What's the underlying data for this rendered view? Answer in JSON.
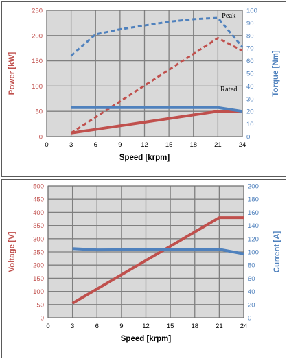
{
  "colors": {
    "power": "#c0504d",
    "torque": "#4f81bd",
    "voltage": "#c0504d",
    "current": "#4f81bd",
    "grid": "#7f7f7f",
    "plot_bg": "#d9d9d9"
  },
  "chart_data": [
    {
      "type": "line",
      "grid": true,
      "xlabel": "Speed [krpm]",
      "ylabel": "Power [kW]",
      "y2label": "Torque [Nm]",
      "xlim": [
        0,
        24
      ],
      "ylim": [
        0,
        250
      ],
      "y2lim": [
        0,
        100
      ],
      "xticks": [
        0,
        3,
        6,
        9,
        12,
        15,
        18,
        21,
        24
      ],
      "yticks": [
        0,
        50,
        100,
        150,
        200,
        250
      ],
      "y2ticks": [
        0,
        10,
        20,
        30,
        40,
        50,
        60,
        70,
        80,
        90,
        100
      ],
      "annotations": [
        "Peak",
        "Rated"
      ],
      "series": [
        {
          "axis": "left",
          "style": "solid",
          "x": [
            3,
            21,
            24
          ],
          "values": [
            7,
            50,
            50
          ]
        },
        {
          "axis": "left",
          "style": "dashed",
          "x": [
            3,
            21,
            24
          ],
          "values": [
            7,
            195,
            170
          ]
        },
        {
          "axis": "right",
          "style": "solid",
          "x": [
            3,
            21,
            24
          ],
          "values": [
            23,
            23,
            20
          ]
        },
        {
          "axis": "right",
          "style": "dashed",
          "x": [
            3,
            6,
            9,
            12,
            15,
            18,
            21,
            24
          ],
          "values": [
            64,
            81,
            85,
            88,
            91,
            93,
            94,
            71
          ]
        }
      ]
    },
    {
      "type": "line",
      "grid": true,
      "xlabel": "Speed [krpm]",
      "ylabel": "Voltage [V]",
      "y2label": "Current [A]",
      "xlim": [
        0,
        24
      ],
      "ylim": [
        0,
        500
      ],
      "y2lim": [
        0,
        200
      ],
      "xticks": [
        0,
        3,
        6,
        9,
        12,
        15,
        18,
        21,
        24
      ],
      "yticks": [
        0,
        50,
        100,
        150,
        200,
        250,
        300,
        350,
        400,
        450,
        500
      ],
      "y2ticks": [
        0,
        20,
        40,
        60,
        80,
        100,
        120,
        140,
        160,
        180,
        200
      ],
      "annotations": [],
      "series": [
        {
          "axis": "left",
          "style": "solid",
          "x": [
            3,
            21,
            24
          ],
          "values": [
            55,
            380,
            380
          ]
        },
        {
          "axis": "right",
          "style": "solid",
          "x": [
            3,
            6,
            21,
            24
          ],
          "values": [
            105,
            103,
            104,
            97
          ]
        }
      ]
    }
  ]
}
